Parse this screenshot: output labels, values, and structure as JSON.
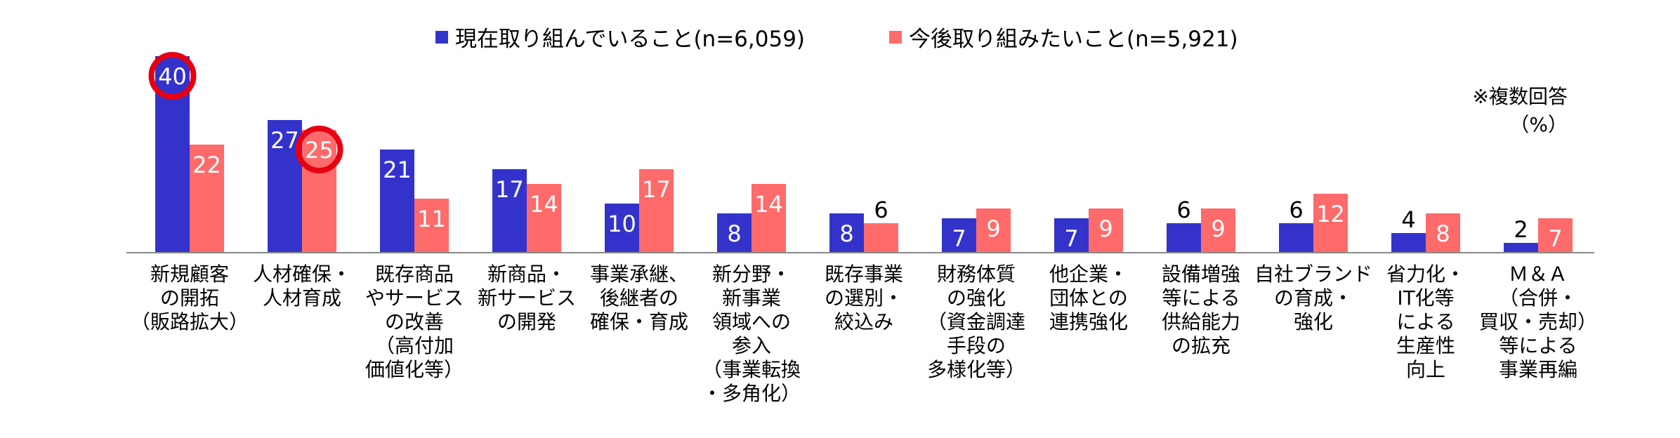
{
  "chart_data": {
    "type": "bar",
    "categories": [
      "新規顧客\nの開拓\n（販路拡大）",
      "人材確保・\n人材育成",
      "既存商品\nやサービス\nの改善\n（高付加\n価値化等）",
      "新商品・\n新サービス\nの開発",
      "事業承継、\n後継者の\n確保・育成",
      "新分野・\n新事業\n領域への\n参入\n（事業転換\n・多角化）",
      "既存事業\nの選別・\n絞込み",
      "財務体質\nの強化\n（資金調達\n手段の\n多様化等）",
      "他企業・\n団体との\n連携強化",
      "設備増強\n等による\n供給能力\nの拡充",
      "自社ブランド\nの育成・\n強化",
      "省力化・\nIT化等\nによる\n生産性\n向上",
      "Ｍ＆Ａ\n（合併・\n買収・売却）\n等による\n事業再編"
    ],
    "series": [
      {
        "name": "現在取り組んでいること(n=6,059)",
        "color": "#3333cc",
        "values": [
          40,
          27,
          21,
          17,
          10,
          8,
          8,
          7,
          7,
          6,
          6,
          4,
          2
        ]
      },
      {
        "name": "今後取り組みたいこと(n=5,921)",
        "color": "#ff6b6b",
        "values": [
          22,
          25,
          11,
          14,
          17,
          14,
          6,
          9,
          9,
          9,
          12,
          8,
          7
        ]
      }
    ],
    "highlighted": [
      {
        "series": 0,
        "index": 0
      },
      {
        "series": 1,
        "index": 1
      }
    ],
    "highlight_color": "#e60012",
    "ylim": [
      0,
      40
    ],
    "grid": false,
    "legend_position": "top-center"
  },
  "note": {
    "multiple": "※複数回答",
    "unit": "（%）"
  }
}
